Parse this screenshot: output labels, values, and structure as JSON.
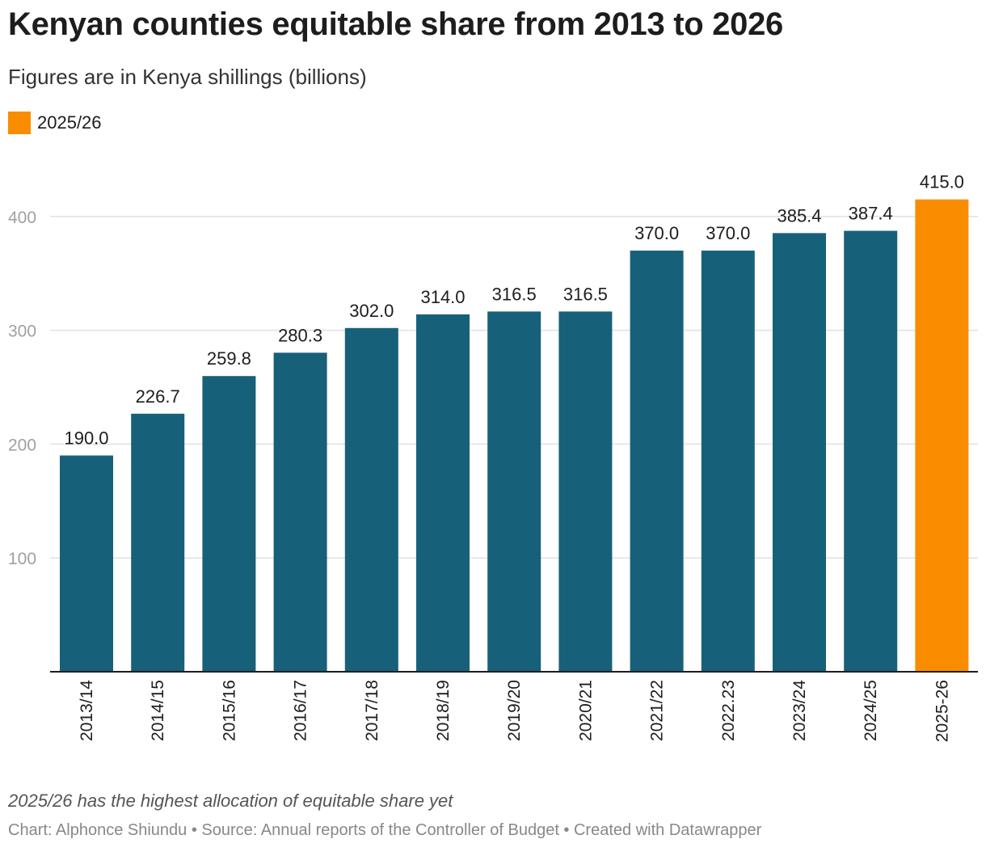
{
  "title": "Kenyan counties equitable share from 2013 to 2026",
  "subtitle": "Figures are in Kenya shillings (billions)",
  "legend": {
    "label": "2025/26",
    "color": "#fa8c00"
  },
  "colors": {
    "bar": "#17607a",
    "highlight": "#fa8c00",
    "grid": "#e0e0e0",
    "axis": "#1d1d1d"
  },
  "chart_data": {
    "type": "bar",
    "categories": [
      "2013/14",
      "2014/15",
      "2015/16",
      "2016/17",
      "2017/18",
      "2018/19",
      "2019/20",
      "2020/21",
      "2021/22",
      "2022.23",
      "2023/24",
      "2024/25",
      "2025-26"
    ],
    "values": [
      190.0,
      226.7,
      259.8,
      280.3,
      302.0,
      314.0,
      316.5,
      316.5,
      370.0,
      370.0,
      385.4,
      387.4,
      415.0
    ],
    "value_labels": [
      "190.0",
      "226.7",
      "259.8",
      "280.3",
      "302.0",
      "314.0",
      "316.5",
      "316.5",
      "370.0",
      "370.0",
      "385.4",
      "387.4",
      "415.0"
    ],
    "highlight_index": 12,
    "y_ticks": [
      100,
      200,
      300,
      400
    ],
    "ylim": [
      0,
      415
    ],
    "grid": true,
    "legend_position": "top-left",
    "category_label_orientation": "vertical"
  },
  "note": "2025/26 has the highest allocation of equitable share yet",
  "credit": "Chart: Alphonce Shiundu • Source: Annual reports of the Controller of Budget • Created with Datawrapper"
}
